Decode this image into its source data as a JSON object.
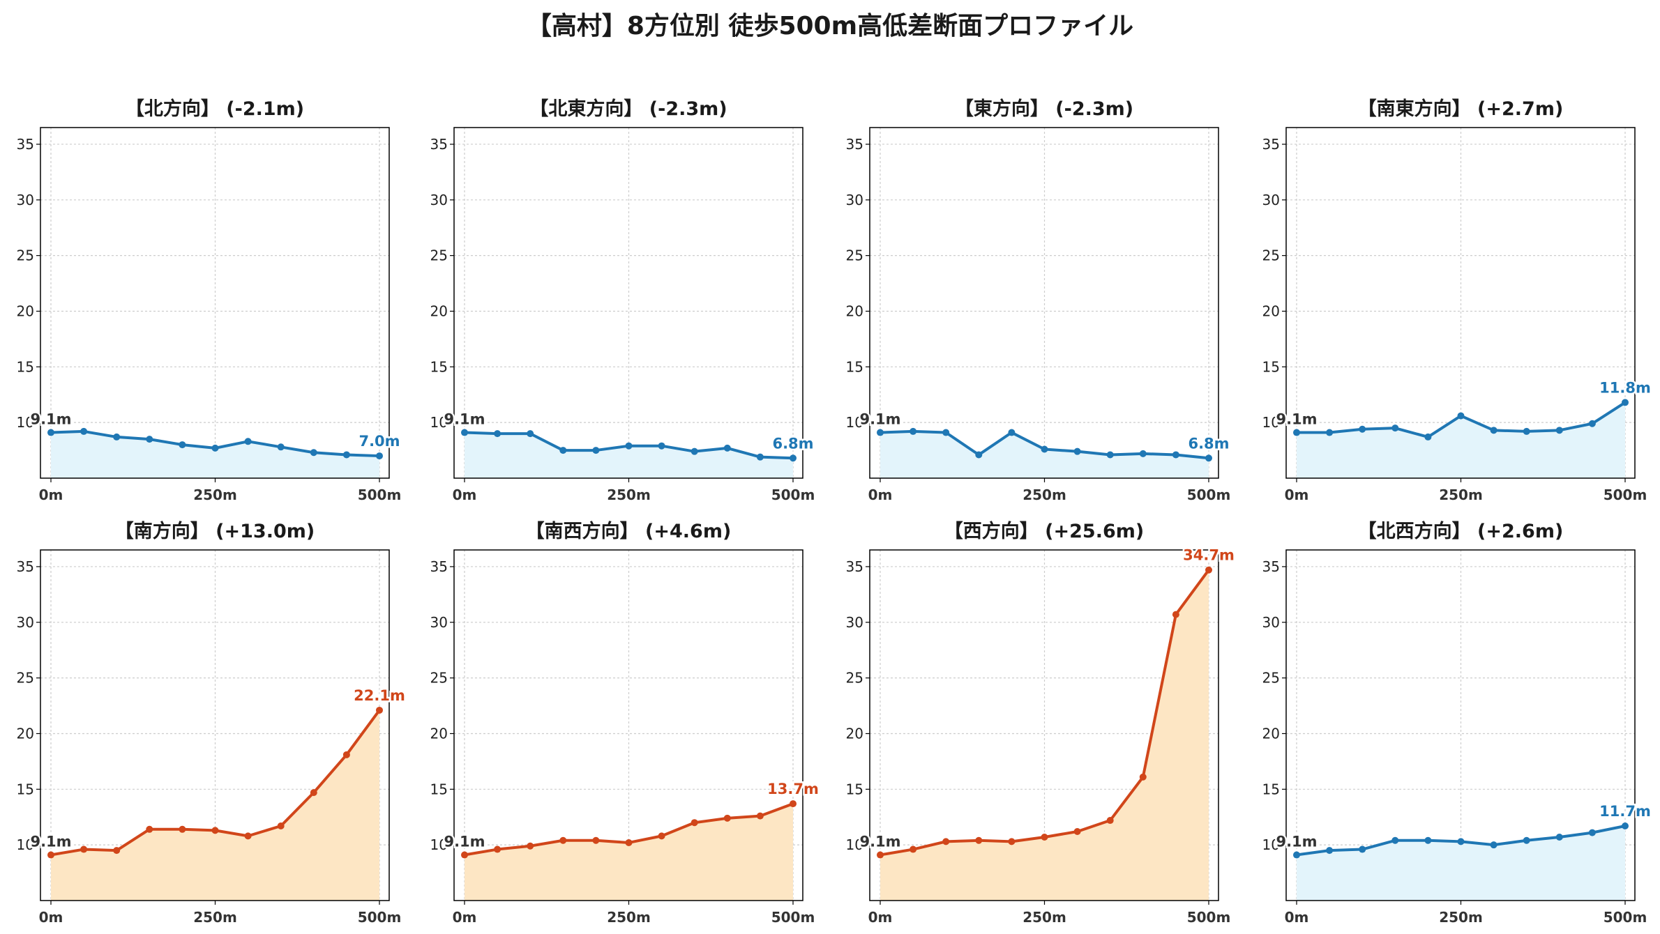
{
  "title": "【高村】8方位別 徒歩500m高低差断面プロファイル",
  "colors": {
    "down_line": "#1f77b4",
    "down_fill": "#e3f4fb",
    "down_label": "#1f77b4",
    "up_line": "#d1461a",
    "up_fill": "#fde6c4",
    "up_label": "#d1461a",
    "grid": "#cccccc",
    "start_label": "#333333"
  },
  "chart_data": [
    {
      "type": "area",
      "title": "【北方向】 (-2.1m)",
      "trend": "down",
      "x": [
        0,
        50,
        100,
        150,
        200,
        250,
        300,
        350,
        400,
        450,
        500
      ],
      "y": [
        9.1,
        9.2,
        8.7,
        8.5,
        8.0,
        7.7,
        8.3,
        7.8,
        7.3,
        7.1,
        7.0
      ],
      "start_label": "9.1m",
      "end_label": "7.0m",
      "xticks": [
        "0m",
        "250m",
        "500m"
      ],
      "yticks": [
        10,
        15,
        20,
        25,
        30,
        35
      ],
      "ylim": [
        5,
        36.5
      ],
      "grid": true
    },
    {
      "type": "area",
      "title": "【北東方向】 (-2.3m)",
      "trend": "down",
      "x": [
        0,
        50,
        100,
        150,
        200,
        250,
        300,
        350,
        400,
        450,
        500
      ],
      "y": [
        9.1,
        9.0,
        9.0,
        7.5,
        7.5,
        7.9,
        7.9,
        7.4,
        7.7,
        6.9,
        6.8
      ],
      "start_label": "9.1m",
      "end_label": "6.8m",
      "xticks": [
        "0m",
        "250m",
        "500m"
      ],
      "yticks": [
        10,
        15,
        20,
        25,
        30,
        35
      ],
      "ylim": [
        5,
        36.5
      ],
      "grid": true
    },
    {
      "type": "area",
      "title": "【東方向】 (-2.3m)",
      "trend": "down",
      "x": [
        0,
        50,
        100,
        150,
        200,
        250,
        300,
        350,
        400,
        450,
        500
      ],
      "y": [
        9.1,
        9.2,
        9.1,
        7.1,
        9.1,
        7.6,
        7.4,
        7.1,
        7.2,
        7.1,
        6.8
      ],
      "start_label": "9.1m",
      "end_label": "6.8m",
      "xticks": [
        "0m",
        "250m",
        "500m"
      ],
      "yticks": [
        10,
        15,
        20,
        25,
        30,
        35
      ],
      "ylim": [
        5,
        36.5
      ],
      "grid": true
    },
    {
      "type": "area",
      "title": "【南東方向】 (+2.7m)",
      "trend": "up_small",
      "x": [
        0,
        50,
        100,
        150,
        200,
        250,
        300,
        350,
        400,
        450,
        500
      ],
      "y": [
        9.1,
        9.1,
        9.4,
        9.5,
        8.7,
        10.6,
        9.3,
        9.2,
        9.3,
        9.9,
        11.8
      ],
      "start_label": "9.1m",
      "end_label": "11.8m",
      "xticks": [
        "0m",
        "250m",
        "500m"
      ],
      "yticks": [
        10,
        15,
        20,
        25,
        30,
        35
      ],
      "ylim": [
        5,
        36.5
      ],
      "grid": true
    },
    {
      "type": "area",
      "title": "【南方向】 (+13.0m)",
      "trend": "up",
      "x": [
        0,
        50,
        100,
        150,
        200,
        250,
        300,
        350,
        400,
        450,
        500
      ],
      "y": [
        9.1,
        9.6,
        9.5,
        11.4,
        11.4,
        11.3,
        10.8,
        11.7,
        14.7,
        18.1,
        22.1
      ],
      "start_label": "9.1m",
      "end_label": "22.1m",
      "xticks": [
        "0m",
        "250m",
        "500m"
      ],
      "yticks": [
        10,
        15,
        20,
        25,
        30,
        35
      ],
      "ylim": [
        5,
        36.5
      ],
      "grid": true
    },
    {
      "type": "area",
      "title": "【南西方向】 (+4.6m)",
      "trend": "up",
      "x": [
        0,
        50,
        100,
        150,
        200,
        250,
        300,
        350,
        400,
        450,
        500
      ],
      "y": [
        9.1,
        9.6,
        9.9,
        10.4,
        10.4,
        10.2,
        10.8,
        12.0,
        12.4,
        12.6,
        13.7
      ],
      "start_label": "9.1m",
      "end_label": "13.7m",
      "xticks": [
        "0m",
        "250m",
        "500m"
      ],
      "yticks": [
        10,
        15,
        20,
        25,
        30,
        35
      ],
      "ylim": [
        5,
        36.5
      ],
      "grid": true
    },
    {
      "type": "area",
      "title": "【西方向】 (+25.6m)",
      "trend": "up",
      "x": [
        0,
        50,
        100,
        150,
        200,
        250,
        300,
        350,
        400,
        450,
        500
      ],
      "y": [
        9.1,
        9.6,
        10.3,
        10.4,
        10.3,
        10.7,
        11.2,
        12.2,
        16.1,
        30.7,
        34.7
      ],
      "start_label": "9.1m",
      "end_label": "34.7m",
      "xticks": [
        "0m",
        "250m",
        "500m"
      ],
      "yticks": [
        10,
        15,
        20,
        25,
        30,
        35
      ],
      "ylim": [
        5,
        36.5
      ],
      "grid": true
    },
    {
      "type": "area",
      "title": "【北西方向】 (+2.6m)",
      "trend": "up_small",
      "x": [
        0,
        50,
        100,
        150,
        200,
        250,
        300,
        350,
        400,
        450,
        500
      ],
      "y": [
        9.1,
        9.5,
        9.6,
        10.4,
        10.4,
        10.3,
        10.0,
        10.4,
        10.7,
        11.1,
        11.7
      ],
      "start_label": "9.1m",
      "end_label": "11.7m",
      "xticks": [
        "0m",
        "250m",
        "500m"
      ],
      "yticks": [
        10,
        15,
        20,
        25,
        30,
        35
      ],
      "ylim": [
        5,
        36.5
      ],
      "grid": true
    }
  ]
}
